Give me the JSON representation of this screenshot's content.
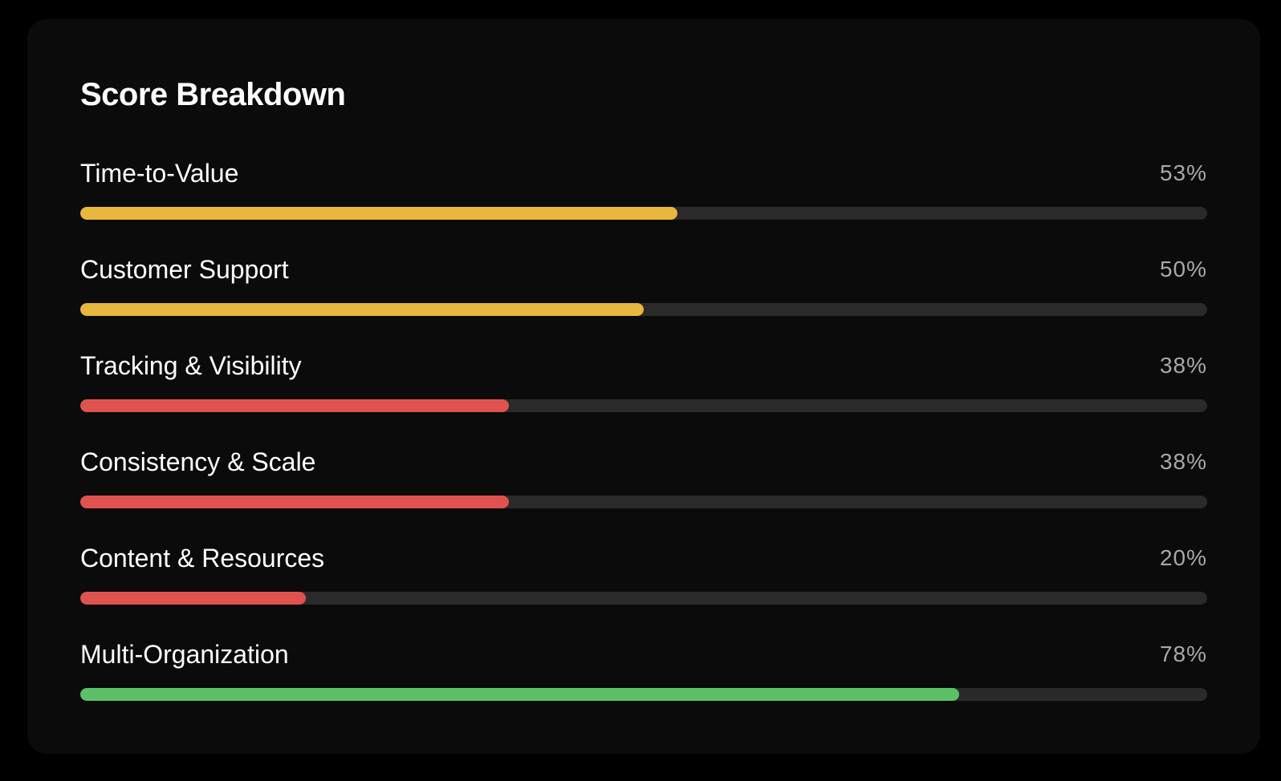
{
  "card": {
    "title": "Score Breakdown"
  },
  "colors": {
    "warning": "#e8b73d",
    "danger": "#e0524d",
    "success": "#5cc166",
    "track": "#2a2a2a"
  },
  "rows": [
    {
      "label": "Time-to-Value",
      "percent_text": "53%",
      "value": 53,
      "status": "warning"
    },
    {
      "label": "Customer Support",
      "percent_text": "50%",
      "value": 50,
      "status": "warning"
    },
    {
      "label": "Tracking & Visibility",
      "percent_text": "38%",
      "value": 38,
      "status": "danger"
    },
    {
      "label": "Consistency & Scale",
      "percent_text": "38%",
      "value": 38,
      "status": "danger"
    },
    {
      "label": "Content & Resources",
      "percent_text": "20%",
      "value": 20,
      "status": "danger"
    },
    {
      "label": "Multi-Organization",
      "percent_text": "78%",
      "value": 78,
      "status": "success"
    }
  ]
}
